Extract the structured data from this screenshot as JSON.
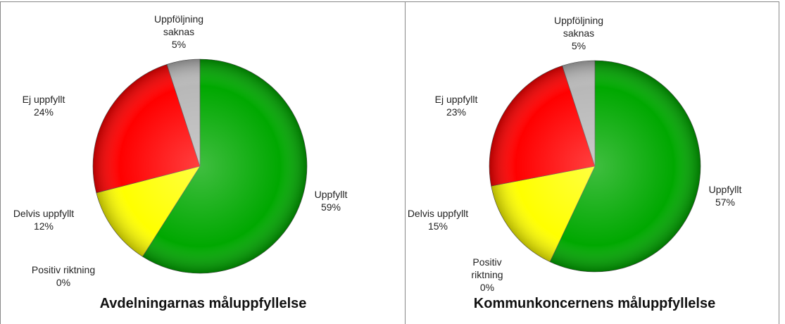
{
  "chart_data": [
    {
      "type": "pie",
      "title": "Avdelningarnas måluppfyllelse",
      "categories": [
        "Uppfyllt",
        "Positiv riktning",
        "Delvis uppfyllt",
        "Ej uppfyllt",
        "Uppföljning saknas"
      ],
      "values": [
        59,
        0,
        12,
        24,
        5
      ],
      "value_labels": [
        "59%",
        "0%",
        "12%",
        "24%",
        "5%"
      ],
      "colors": [
        "#00a800",
        "#3aa0d8",
        "#ffff00",
        "#ff0000",
        "#b8b8b8"
      ]
    },
    {
      "type": "pie",
      "title": "Kommunkoncernens måluppfyllelse",
      "categories": [
        "Uppfyllt",
        "Positiv riktning",
        "Delvis uppfyllt",
        "Ej uppfyllt",
        "Uppföljning saknas"
      ],
      "values": [
        57,
        0,
        15,
        23,
        5
      ],
      "value_labels": [
        "57%",
        "0%",
        "15%",
        "23%",
        "5%"
      ],
      "colors": [
        "#00a800",
        "#3aa0d8",
        "#ffff00",
        "#ff0000",
        "#b8b8b8"
      ]
    }
  ]
}
